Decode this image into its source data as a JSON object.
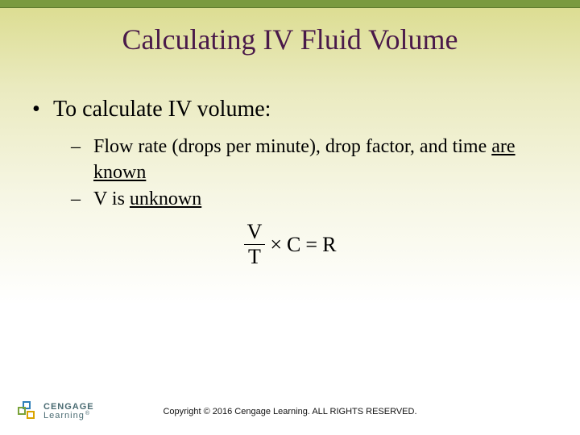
{
  "colors": {
    "top_bar": "#7a9a3f",
    "title": "#4a1a4a",
    "bg_gradient_top": "#dbdc8e",
    "bg_gradient_bottom": "#ffffff",
    "logo_text": "#4a6b72",
    "logo_sq_a": "#2e7fb8",
    "logo_sq_b": "#7aa33a",
    "logo_sq_c": "#d9a400"
  },
  "title": "Calculating IV Fluid Volume",
  "main_bullet": "To calculate IV volume:",
  "sub1_prefix": "Flow rate (drops per minute), drop factor, and time ",
  "sub1_underlined": "are known",
  "sub2_prefix": "V is ",
  "sub2_underlined": "unknown",
  "formula": {
    "numerator": "V",
    "denominator": "T",
    "times": "×",
    "c": "C",
    "eq": "=",
    "r": "R"
  },
  "logo": {
    "line1": "CENGAGE",
    "line2": "Learning"
  },
  "copyright": "Copyright © 2016 Cengage Learning. ALL RIGHTS RESERVED."
}
